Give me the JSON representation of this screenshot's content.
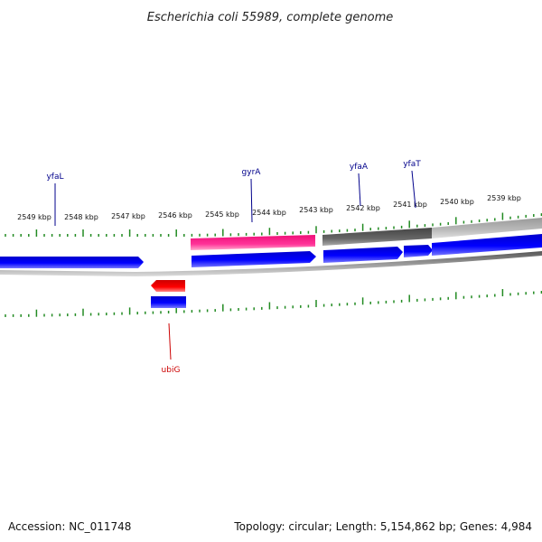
{
  "title": "Escherichia coli 55989, complete genome",
  "footer": {
    "accession": "Accession: NC_011748",
    "summary": "Topology: circular; Length: 5,154,862 bp; Genes: 4,984"
  },
  "scale": {
    "unit": "kbp",
    "labels": [
      "2549 kbp",
      "2548 kbp",
      "2547 kbp",
      "2546 kbp",
      "2545 kbp",
      "2544 kbp",
      "2543 kbp",
      "2542 kbp",
      "2541 kbp",
      "2540 kbp",
      "2539 kbp"
    ]
  },
  "genes": [
    {
      "name": "yfaL",
      "strand": "forward",
      "color": "#00008b"
    },
    {
      "name": "gyrA",
      "strand": "forward",
      "color": "#00008b"
    },
    {
      "name": "yfaA",
      "strand": "forward",
      "color": "#00008b"
    },
    {
      "name": "yfaT",
      "strand": "forward",
      "color": "#00008b"
    },
    {
      "name": "ubiG",
      "strand": "reverse",
      "color": "#cc0000"
    }
  ],
  "colors": {
    "cds": "#0000ee",
    "cds_reverse": "#ee0000",
    "highlight": "#ff3399",
    "feature_dark": "#666666",
    "feature_light": "#bbbbbb",
    "backbone": "#888888",
    "ticks": "#228b22"
  }
}
